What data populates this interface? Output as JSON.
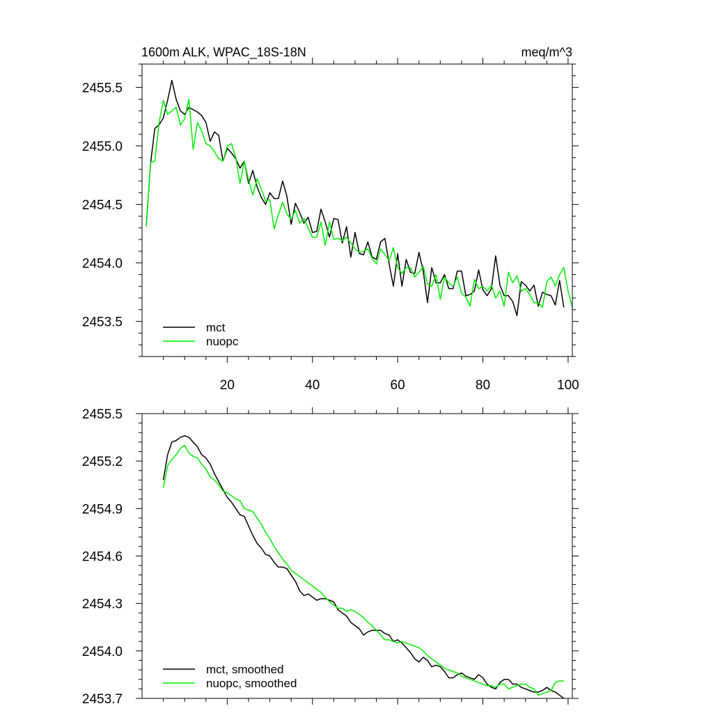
{
  "chart_data": [
    {
      "type": "line",
      "title": "1600m ALK, WPAC_18S-18N",
      "units": "meq/m^3",
      "xlim": [
        0,
        101
      ],
      "ylim": [
        2453.2,
        2455.7
      ],
      "xticks": [
        20,
        40,
        60,
        80,
        100
      ],
      "xtick_labels": [
        "20",
        "40",
        "60",
        "80",
        "100"
      ],
      "yticks": [
        2453.5,
        2454.0,
        2454.5,
        2455.0,
        2455.5
      ],
      "ytick_labels": [
        "2453.5",
        "2454.0",
        "2454.5",
        "2455.0",
        "2455.5"
      ],
      "series": [
        {
          "name": "mct",
          "color": "#000000",
          "x_start": 1,
          "values": [
            2454.32,
            2454.85,
            2455.15,
            2455.18,
            2455.24,
            2455.39,
            2455.56,
            2455.4,
            2455.3,
            2455.27,
            2455.33,
            2455.31,
            2455.29,
            2455.26,
            2455.2,
            2455.04,
            2455.12,
            2455.09,
            2454.87,
            2454.98,
            2454.94,
            2454.89,
            2454.81,
            2454.87,
            2454.68,
            2454.79,
            2454.65,
            2454.56,
            2454.5,
            2454.6,
            2454.55,
            2454.55,
            2454.7,
            2454.57,
            2454.33,
            2454.51,
            2454.43,
            2454.34,
            2454.39,
            2454.26,
            2454.27,
            2454.46,
            2454.35,
            2454.22,
            2454.38,
            2454.37,
            2454.17,
            2454.31,
            2454.05,
            2454.26,
            2454.08,
            2454.07,
            2454.18,
            2454.05,
            2454.03,
            2454.18,
            2454.21,
            2453.99,
            2453.8,
            2454.08,
            2453.8,
            2454.03,
            2453.92,
            2453.91,
            2454.09,
            2453.93,
            2453.66,
            2453.96,
            2453.83,
            2453.83,
            2453.9,
            2453.78,
            2453.78,
            2453.93,
            2453.93,
            2453.72,
            2453.73,
            2453.76,
            2453.94,
            2453.77,
            2453.72,
            2453.78,
            2454.06,
            2453.81,
            2453.72,
            2453.72,
            2453.67,
            2453.55,
            2453.84,
            2453.81,
            2453.76,
            2453.81,
            2453.63,
            2453.75,
            2453.73,
            2453.72,
            2453.64,
            2453.85,
            2453.62
          ]
        },
        {
          "name": "nuopc",
          "color": "#00ee00",
          "x_start": 1,
          "values": [
            2454.31,
            2454.86,
            2454.87,
            2455.2,
            2455.39,
            2455.27,
            2455.3,
            2455.33,
            2455.18,
            2455.23,
            2455.4,
            2454.97,
            2455.2,
            2455.13,
            2455.02,
            2455.0,
            2454.95,
            2454.89,
            2454.87,
            2455.0,
            2455.02,
            2454.9,
            2454.68,
            2454.87,
            2454.71,
            2454.58,
            2454.72,
            2454.63,
            2454.53,
            2454.54,
            2454.29,
            2454.41,
            2454.52,
            2454.42,
            2454.37,
            2454.45,
            2454.34,
            2454.38,
            2454.3,
            2454.22,
            2454.22,
            2454.35,
            2454.15,
            2454.35,
            2454.2,
            2454.21,
            2454.19,
            2454.22,
            2454.17,
            2454.12,
            2454.09,
            2454.1,
            2454.12,
            2454.04,
            2453.99,
            2454.12,
            2454.07,
            2454.02,
            2454.13,
            2453.96,
            2453.91,
            2453.96,
            2453.96,
            2453.88,
            2453.92,
            2453.97,
            2453.82,
            2453.8,
            2453.9,
            2453.69,
            2453.88,
            2453.83,
            2453.8,
            2453.88,
            2453.74,
            2453.71,
            2453.63,
            2453.86,
            2453.78,
            2453.8,
            2453.76,
            2453.81,
            2453.7,
            2453.76,
            2453.63,
            2453.92,
            2453.83,
            2453.89,
            2453.76,
            2453.78,
            2453.73,
            2453.66,
            2453.66,
            2453.62,
            2453.84,
            2453.88,
            2453.8,
            2453.9,
            2453.96,
            2453.76,
            2453.62
          ]
        }
      ]
    },
    {
      "type": "line",
      "title": "",
      "units": "",
      "xlim": [
        0,
        101
      ],
      "ylim": [
        2453.7,
        2455.5
      ],
      "xticks": [
        20,
        40,
        60,
        80,
        100
      ],
      "yticks": [
        2453.7,
        2454.0,
        2454.3,
        2454.6,
        2454.9,
        2455.2,
        2455.5
      ],
      "ytick_labels": [
        "2453.7",
        "2454.0",
        "2454.3",
        "2454.6",
        "2454.9",
        "2455.2",
        "2455.5"
      ],
      "series": [
        {
          "name": "mct, smoothed",
          "color": "#000000",
          "x_start": 5,
          "values": [
            2455.08,
            2455.24,
            2455.32,
            2455.33,
            2455.35,
            2455.36,
            2455.35,
            2455.32,
            2455.29,
            2455.24,
            2455.22,
            2455.18,
            2455.12,
            2455.07,
            2455.02,
            2454.97,
            2454.94,
            2454.9,
            2454.86,
            2454.85,
            2454.79,
            2454.73,
            2454.68,
            2454.65,
            2454.61,
            2454.6,
            2454.56,
            2454.53,
            2454.53,
            2454.52,
            2454.48,
            2454.44,
            2454.38,
            2454.35,
            2454.36,
            2454.34,
            2454.32,
            2454.33,
            2454.33,
            2454.32,
            2454.31,
            2454.26,
            2454.24,
            2454.22,
            2454.18,
            2454.16,
            2454.14,
            2454.1,
            2454.12,
            2454.13,
            2454.13,
            2454.13,
            2454.11,
            2454.1,
            2454.06,
            2454.07,
            2454.05,
            2454.02,
            2453.99,
            2453.95,
            2453.93,
            2453.96,
            2453.94,
            2453.9,
            2453.91,
            2453.9,
            2453.87,
            2453.83,
            2453.83,
            2453.85,
            2453.86,
            2453.84,
            2453.83,
            2453.82,
            2453.85,
            2453.83,
            2453.79,
            2453.77,
            2453.76,
            2453.8,
            2453.82,
            2453.82,
            2453.79,
            2453.79,
            2453.77,
            2453.76,
            2453.75,
            2453.74,
            2453.74,
            2453.75,
            2453.77,
            2453.75,
            2453.74,
            2453.72,
            2453.7
          ]
        },
        {
          "name": "nuopc, smoothed",
          "color": "#00ee00",
          "x_start": 5,
          "values": [
            2455.03,
            2455.17,
            2455.21,
            2455.24,
            2455.28,
            2455.3,
            2455.25,
            2455.23,
            2455.22,
            2455.18,
            2455.15,
            2455.1,
            2455.08,
            2455.05,
            2455.01,
            2455.0,
            2454.98,
            2454.96,
            2454.95,
            2454.9,
            2454.89,
            2454.88,
            2454.84,
            2454.8,
            2454.75,
            2454.71,
            2454.66,
            2454.62,
            2454.58,
            2454.55,
            2454.51,
            2454.49,
            2454.47,
            2454.45,
            2454.43,
            2454.41,
            2454.39,
            2454.37,
            2454.34,
            2454.31,
            2454.29,
            2454.27,
            2454.27,
            2454.25,
            2454.26,
            2454.25,
            2454.23,
            2454.21,
            2454.18,
            2454.16,
            2454.13,
            2454.1,
            2454.07,
            2454.07,
            2454.06,
            2454.05,
            2454.06,
            2454.05,
            2454.04,
            2454.03,
            2454.02,
            2454.0,
            2453.97,
            2453.95,
            2453.93,
            2453.91,
            2453.89,
            2453.88,
            2453.87,
            2453.86,
            2453.84,
            2453.83,
            2453.82,
            2453.81,
            2453.8,
            2453.79,
            2453.78,
            2453.78,
            2453.77,
            2453.79,
            2453.79,
            2453.76,
            2453.77,
            2453.78,
            2453.79,
            2453.79,
            2453.77,
            2453.76,
            2453.72,
            2453.73,
            2453.74,
            2453.75,
            2453.8,
            2453.81,
            2453.81
          ]
        }
      ]
    }
  ]
}
